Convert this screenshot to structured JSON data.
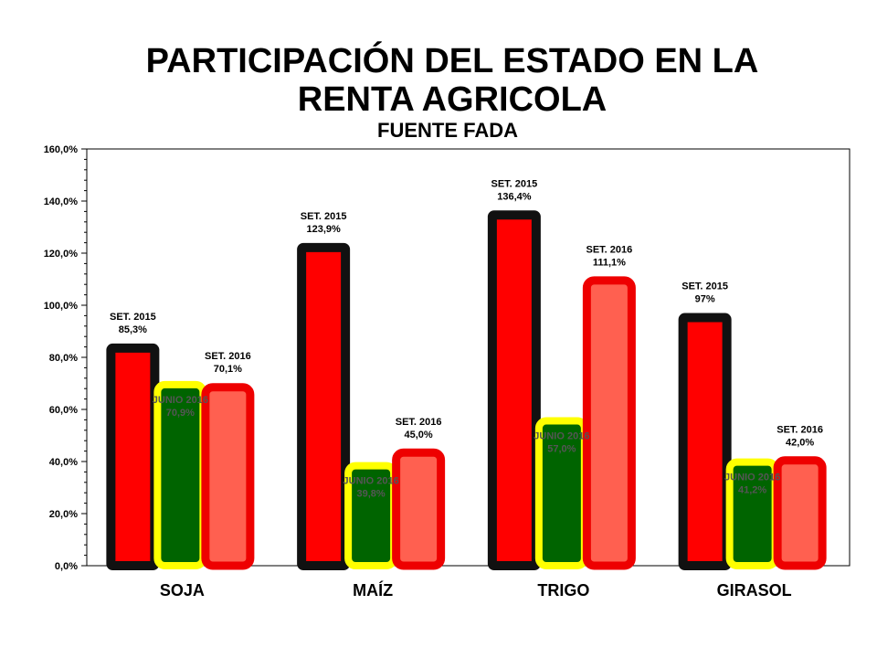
{
  "title_lines": [
    "PARTICIPACIÓN DEL ESTADO EN LA",
    "RENTA AGRICOLA"
  ],
  "subtitle": "FUENTE FADA",
  "chart_data": {
    "type": "bar",
    "title": "PARTICIPACIÓN DEL ESTADO EN LA RENTA AGRICOLA",
    "subtitle": "FUENTE FADA",
    "categories": [
      "SOJA",
      "MAÍZ",
      "TRIGO",
      "GIRASOL"
    ],
    "series": [
      {
        "name": "SET. 2015",
        "values": [
          85.3,
          123.9,
          136.4,
          97.0
        ],
        "labels": [
          "85,3%",
          "123,9%",
          "136,4%",
          "97%"
        ],
        "fill": "#ff0000",
        "border": "#111111"
      },
      {
        "name": "JUNIO 2016",
        "values": [
          70.9,
          39.8,
          57.0,
          41.2
        ],
        "labels": [
          "70,9%",
          "39,8%",
          "57,0%",
          "41,2%"
        ],
        "fill": "#006400",
        "border": "#ffff00"
      },
      {
        "name": "SET. 2016",
        "values": [
          70.1,
          45.0,
          111.1,
          42.0
        ],
        "labels": [
          "70,1%",
          "45,0%",
          "111,1%",
          "42,0%"
        ],
        "fill": "#ff6050",
        "border": "#ee0000"
      }
    ],
    "ylim": [
      0,
      160
    ],
    "yticks": [
      0,
      20,
      40,
      60,
      80,
      100,
      120,
      140,
      160
    ],
    "ytick_labels": [
      "0,0%",
      "20,0%",
      "40,0%",
      "60,0%",
      "80,0%",
      "100,0%",
      "120,0%",
      "140,0%",
      "160,0%"
    ],
    "xlabel": "",
    "ylabel": "",
    "grid": false,
    "legend": "none"
  }
}
